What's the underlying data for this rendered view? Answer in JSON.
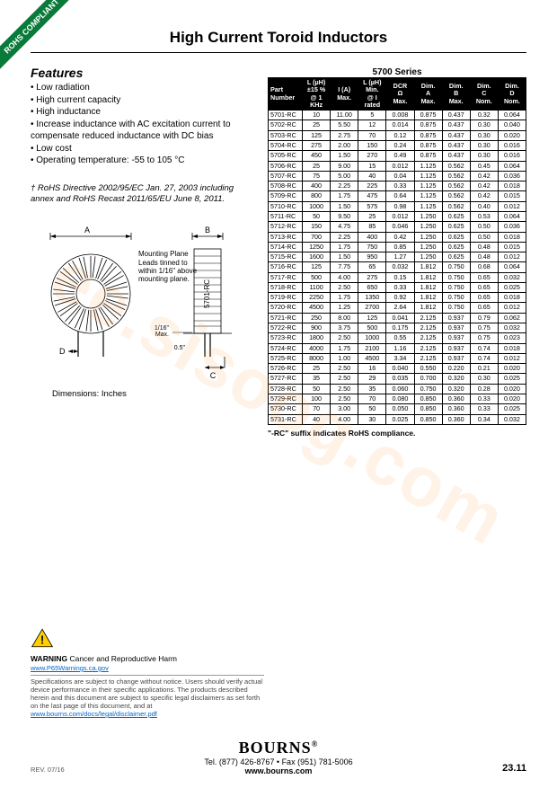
{
  "ribbon": "ROHS COMPLIANT",
  "title": "High Current Toroid Inductors",
  "features_title": "Features",
  "features": [
    "Low radiation",
    "High current capacity",
    "High inductance",
    "Increase inductance with AC excitation current to compensate reduced inductance with DC bias",
    "Low cost",
    "Operating temperature: -55 to 105 °C"
  ],
  "rohs_note": "† RoHS Directive 2002/95/EC Jan. 27, 2003 including annex and RoHS Recast 2011/65/EU June 8, 2011.",
  "diagram_labels": {
    "A": "A",
    "B": "B",
    "C": "C",
    "D": "D",
    "mounting": "Mounting Plane",
    "leads": "Leads tinned to within 1/16\" above mounting plane.",
    "side_label": "5701-RC",
    "h1": "1/16\"\nMax.",
    "h2": "0.5\"",
    "caption": "Dimensions:  Inches"
  },
  "series_title": "5700 Series",
  "columns": [
    "Part\nNumber",
    "L (µH)\n±15 %\n@ 1 KHz",
    "I (A)\nMax.",
    "L (µH)\nMin.\n@ I rated",
    "DCR\nΩ\nMax.",
    "Dim.\nA\nMax.",
    "Dim.\nB\nMax.",
    "Dim.\nC\nNom.",
    "Dim.\nD\nNom."
  ],
  "rows": [
    [
      "5701-RC",
      "10",
      "11.00",
      "5",
      "0.008",
      "0.875",
      "0.437",
      "0.32",
      "0.064"
    ],
    [
      "5702-RC",
      "25",
      "5.50",
      "12",
      "0.014",
      "0.875",
      "0.437",
      "0.30",
      "0.040"
    ],
    [
      "5703-RC",
      "125",
      "2.75",
      "70",
      "0.12",
      "0.875",
      "0.437",
      "0.30",
      "0.020"
    ],
    [
      "5704-RC",
      "275",
      "2.00",
      "150",
      "0.24",
      "0.875",
      "0.437",
      "0.30",
      "0.016"
    ],
    [
      "5705-RC",
      "450",
      "1.50",
      "270",
      "0.49",
      "0.875",
      "0.437",
      "0.30",
      "0.016"
    ],
    [
      "5706-RC",
      "25",
      "9.00",
      "15",
      "0.012",
      "1.125",
      "0.562",
      "0.45",
      "0.064"
    ],
    [
      "5707-RC",
      "75",
      "5.00",
      "40",
      "0.04",
      "1.125",
      "0.562",
      "0.42",
      "0.036"
    ],
    [
      "5708-RC",
      "400",
      "2.25",
      "225",
      "0.33",
      "1.125",
      "0.562",
      "0.42",
      "0.018"
    ],
    [
      "5709-RC",
      "800",
      "1.75",
      "475",
      "0.64",
      "1.125",
      "0.562",
      "0.42",
      "0.015"
    ],
    [
      "5710-RC",
      "1000",
      "1.50",
      "575",
      "0.98",
      "1.125",
      "0.562",
      "0.40",
      "0.012"
    ],
    [
      "5711-RC",
      "50",
      "9.50",
      "25",
      "0.012",
      "1.250",
      "0.625",
      "0.53",
      "0.064"
    ],
    [
      "5712-RC",
      "150",
      "4.75",
      "85",
      "0.046",
      "1.250",
      "0.625",
      "0.50",
      "0.036"
    ],
    [
      "5713-RC",
      "700",
      "2.25",
      "400",
      "0.42",
      "1.250",
      "0.625",
      "0.50",
      "0.018"
    ],
    [
      "5714-RC",
      "1250",
      "1.75",
      "750",
      "0.85",
      "1.250",
      "0.625",
      "0.48",
      "0.015"
    ],
    [
      "5715-RC",
      "1600",
      "1.50",
      "950",
      "1.27",
      "1.250",
      "0.625",
      "0.48",
      "0.012"
    ],
    [
      "5716-RC",
      "125",
      "7.75",
      "65",
      "0.032",
      "1.812",
      "0.750",
      "0.68",
      "0.064"
    ],
    [
      "5717-RC",
      "500",
      "4.00",
      "275",
      "0.15",
      "1.812",
      "0.750",
      "0.65",
      "0.032"
    ],
    [
      "5718-RC",
      "1100",
      "2.50",
      "650",
      "0.33",
      "1.812",
      "0.750",
      "0.65",
      "0.025"
    ],
    [
      "5719-RC",
      "2250",
      "1.75",
      "1350",
      "0.92",
      "1.812",
      "0.750",
      "0.65",
      "0.018"
    ],
    [
      "5720-RC",
      "4500",
      "1.25",
      "2700",
      "2.64",
      "1.812",
      "0.750",
      "0.65",
      "0.012"
    ],
    [
      "5721-RC",
      "250",
      "8.00",
      "125",
      "0.041",
      "2.125",
      "0.937",
      "0.79",
      "0.062"
    ],
    [
      "5722-RC",
      "900",
      "3.75",
      "500",
      "0.175",
      "2.125",
      "0.937",
      "0.75",
      "0.032"
    ],
    [
      "5723-RC",
      "1800",
      "2.50",
      "1000",
      "0.55",
      "2.125",
      "0.937",
      "0.75",
      "0.023"
    ],
    [
      "5724-RC",
      "4000",
      "1.75",
      "2100",
      "1.16",
      "2.125",
      "0.937",
      "0.74",
      "0.018"
    ],
    [
      "5725-RC",
      "8000",
      "1.00",
      "4500",
      "3.34",
      "2.125",
      "0.937",
      "0.74",
      "0.012"
    ],
    [
      "5726-RC",
      "25",
      "2.50",
      "16",
      "0.040",
      "0.550",
      "0.220",
      "0.21",
      "0.020"
    ],
    [
      "5727-RC",
      "35",
      "2.50",
      "29",
      "0.035",
      "0.700",
      "0.320",
      "0.30",
      "0.025"
    ],
    [
      "5728-RC",
      "50",
      "2.50",
      "35",
      "0.060",
      "0.750",
      "0.320",
      "0.28",
      "0.020"
    ],
    [
      "5729-RC",
      "100",
      "2.50",
      "70",
      "0.080",
      "0.850",
      "0.360",
      "0.33",
      "0.020"
    ],
    [
      "5730-RC",
      "70",
      "3.00",
      "50",
      "0.050",
      "0.850",
      "0.360",
      "0.33",
      "0.025"
    ],
    [
      "5731-RC",
      "40",
      "4.00",
      "30",
      "0.025",
      "0.850",
      "0.360",
      "0.34",
      "0.032"
    ]
  ],
  "rc_note": "\"-RC\" suffix indicates RoHS compliance.",
  "warning": {
    "lead": "WARNING",
    "text": "Cancer and Reproductive Harm",
    "link": "www.P65Warnings.ca.gov",
    "disclaimer": "Specifications are subject to change without notice. Users should verify actual device performance in their specific applications. The products described herein and this document are subject to specific legal disclaimers as set forth on the last page of this document, and at",
    "disclaimer_link": "www.bourns.com/docs/legal/disclaimer.pdf"
  },
  "footer": {
    "brand": "BOURNS",
    "contact": "Tel. (877) 426-8767 • Fax (951) 781-5006",
    "site": "www.bourns.com"
  },
  "rev": "REV. 07/16",
  "pagenum": "23.11",
  "watermark": "ee.sisoog.com"
}
